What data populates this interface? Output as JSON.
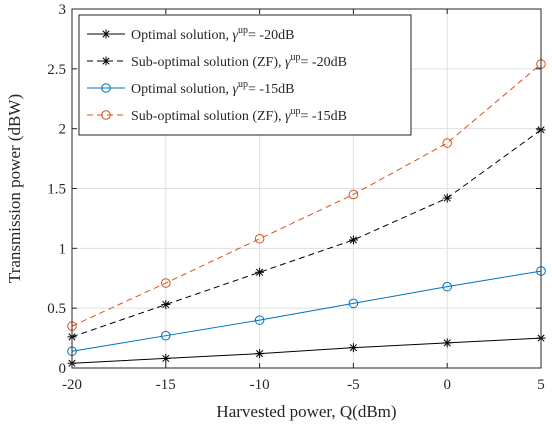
{
  "chart_data": {
    "type": "line",
    "xlabel": "Harvested power, Q(dBm)",
    "ylabel": "Transmission power (dBW)",
    "xlim": [
      -20,
      5
    ],
    "ylim": [
      0,
      3
    ],
    "xticks": [
      -20,
      -15,
      -10,
      -5,
      0,
      5
    ],
    "yticks": [
      0,
      0.5,
      1,
      1.5,
      2,
      2.5,
      3
    ],
    "xtick_labels": [
      "-20",
      "-15",
      "-10",
      "-5",
      "0",
      "5"
    ],
    "ytick_labels": [
      "0",
      "0.5",
      "1",
      "1.5",
      "2",
      "2.5",
      "3"
    ],
    "x": [
      -20,
      -15,
      -10,
      -5,
      0,
      5
    ],
    "grid": true,
    "legend_position": "top-left",
    "series": [
      {
        "name_main": "Optimal solution, ",
        "name_suffix": "= -20dB",
        "values": [
          0.04,
          0.08,
          0.12,
          0.17,
          0.21,
          0.25
        ],
        "color": "#000000",
        "dash": "solid",
        "marker": "star"
      },
      {
        "name_main": "Sub-optimal solution (ZF), ",
        "name_suffix": "= -20dB",
        "values": [
          0.26,
          0.53,
          0.8,
          1.07,
          1.42,
          1.99
        ],
        "color": "#000000",
        "dash": "dashed",
        "marker": "star"
      },
      {
        "name_main": "Optimal solution, ",
        "name_suffix": "= -15dB",
        "values": [
          0.14,
          0.27,
          0.4,
          0.54,
          0.68,
          0.81
        ],
        "color": "#0072bd",
        "dash": "solid",
        "marker": "circle"
      },
      {
        "name_main": "Sub-optimal solution (ZF), ",
        "name_suffix": "= -15dB",
        "values": [
          0.35,
          0.71,
          1.08,
          1.45,
          1.88,
          2.54
        ],
        "color": "#d95319",
        "dash": "dashed",
        "marker": "circle"
      }
    ],
    "legend_symbol": "γ",
    "legend_superscript": "up"
  }
}
